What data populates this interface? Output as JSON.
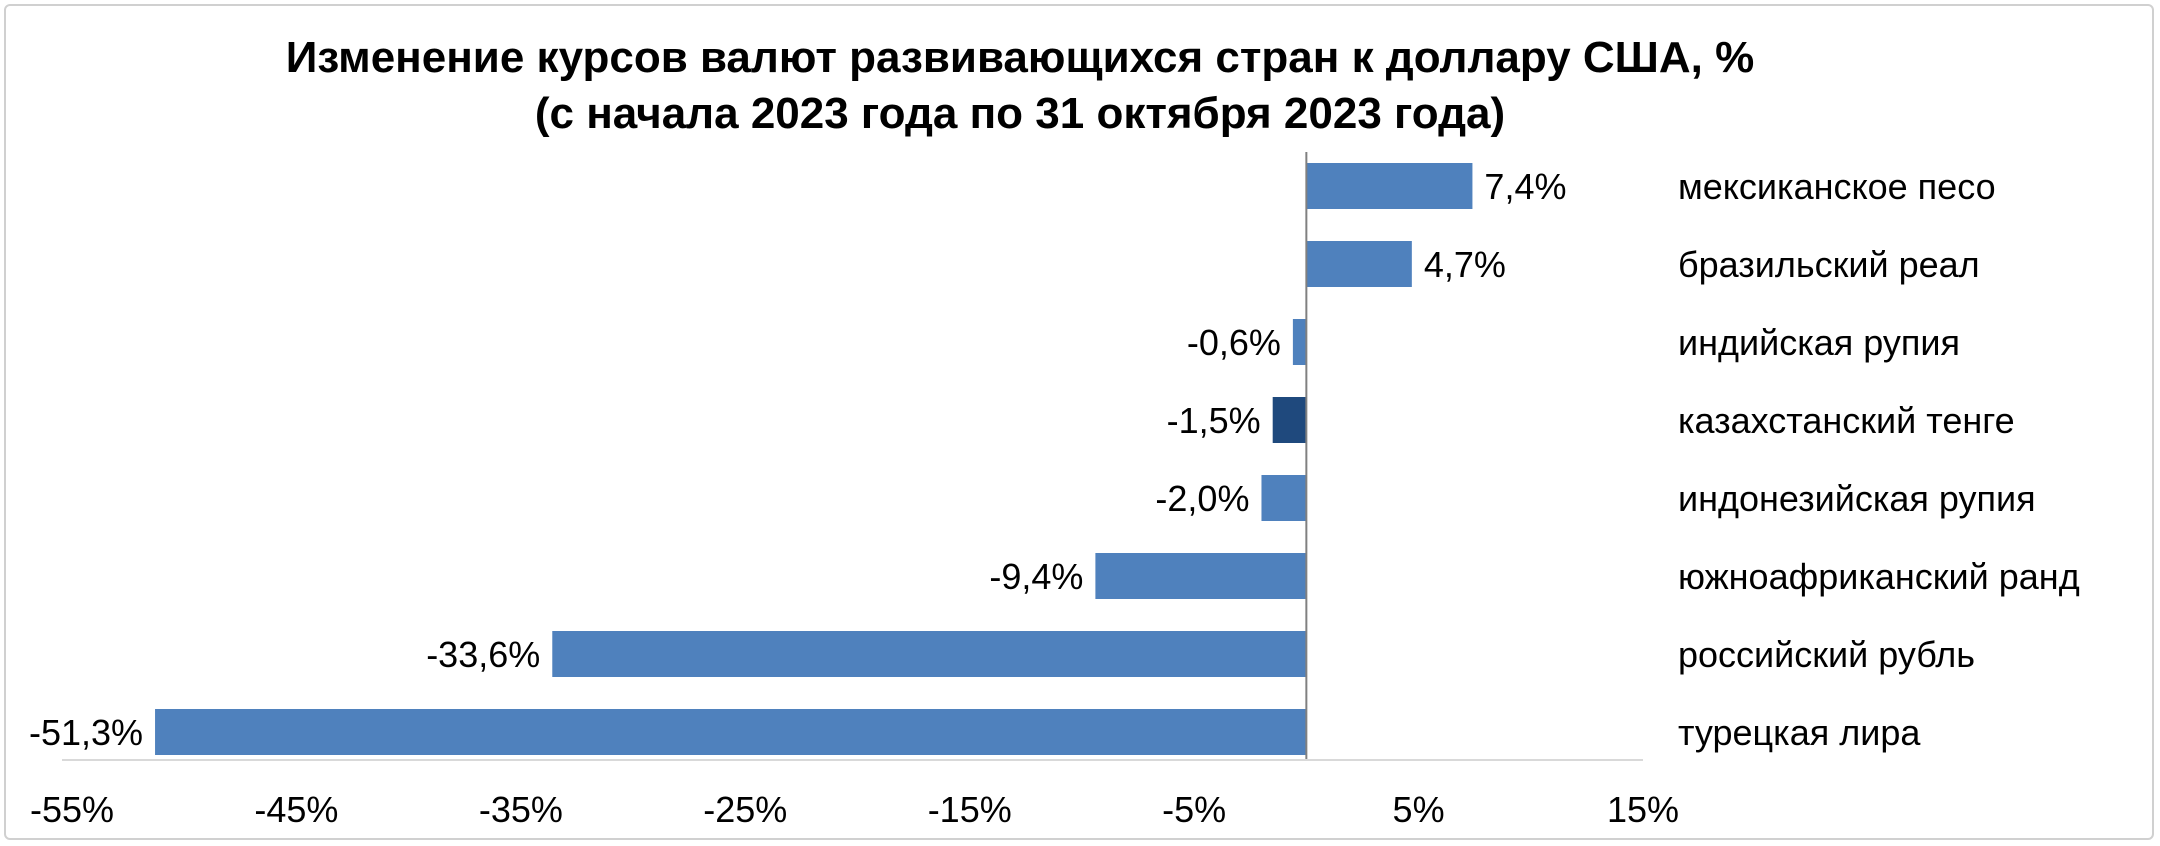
{
  "chart_data": {
    "type": "bar",
    "orientation": "horizontal",
    "title": "Изменение курсов валют развивающихся стран к доллару США, %",
    "subtitle": "(с начала 2023 года по 31 октября 2023 года)",
    "categories": [
      "мексиканское песо",
      "бразильский реал",
      "индийская рупия",
      "казахстанский тенге",
      "индонезийская рупия",
      "южноафриканский ранд",
      "российский рубль",
      "турецкая лира"
    ],
    "values": [
      7.4,
      4.7,
      -0.6,
      -1.5,
      -2.0,
      -9.4,
      -33.6,
      -51.3
    ],
    "data_labels": [
      "7,4%",
      "4,7%",
      "-0,6%",
      "-1,5%",
      "-2,0%",
      "-9,4%",
      "-33,6%",
      "-51,3%"
    ],
    "xlim": [
      -55,
      15
    ],
    "x_ticks": [
      -55,
      -45,
      -35,
      -25,
      -15,
      -5,
      5,
      15
    ],
    "x_tick_labels": [
      "-55%",
      "-45%",
      "-35%",
      "-25%",
      "-15%",
      "-5%",
      "5%",
      "15%"
    ],
    "category_label_position": "right",
    "grid": false,
    "legend": "none",
    "colors": {
      "default_bar": "#4f81bd",
      "highlight_bar": "#1f497d",
      "axis": "#808080"
    },
    "highlight_index": 3
  }
}
